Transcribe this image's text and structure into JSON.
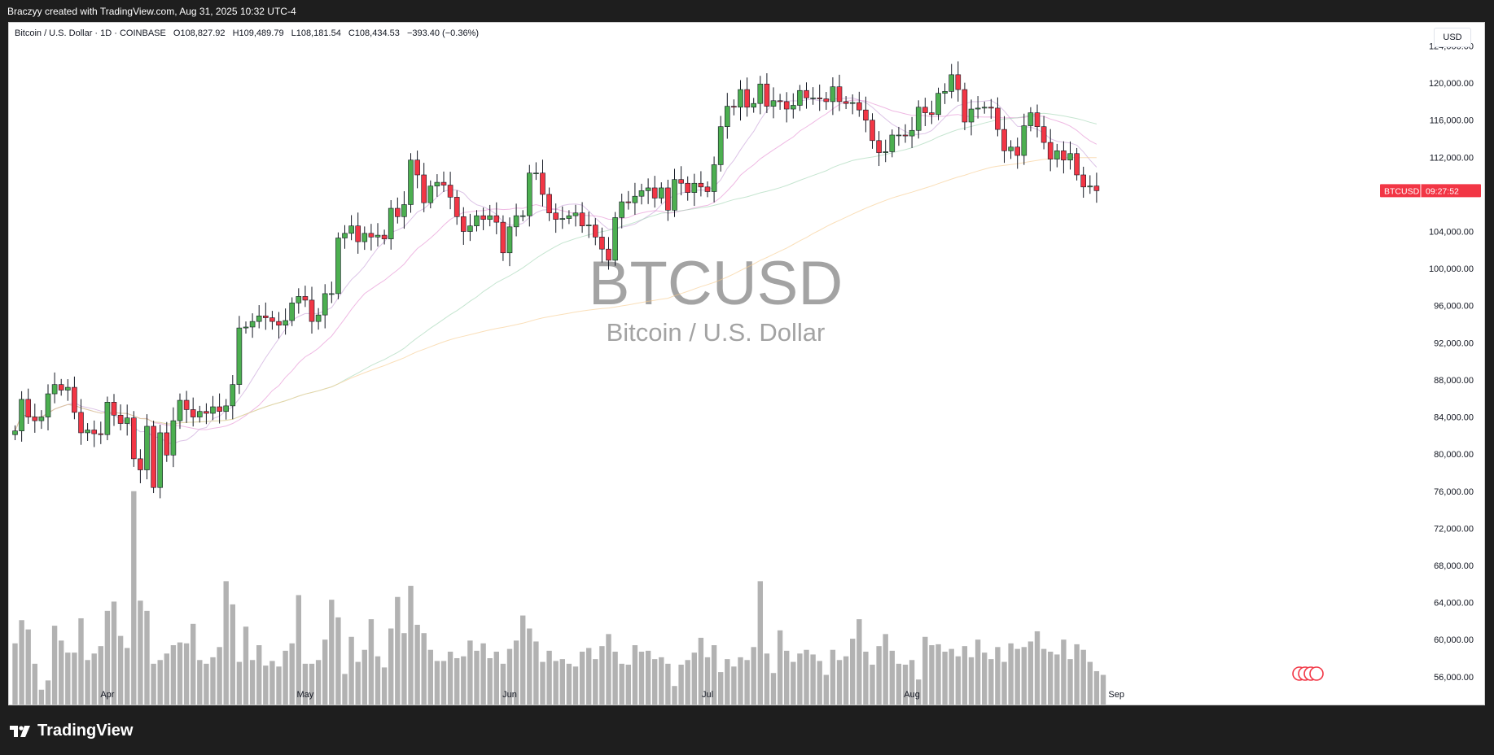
{
  "caption": "Braczyy created with TradingView.com, Aug 31, 2025 10:32 UTC-4",
  "header": {
    "symbol": "Bitcoin / U.S. Dollar · 1D · COINBASE",
    "open": "O108,827.92",
    "high": "H109,489.79",
    "low": "L108,181.54",
    "close": "C108,434.53",
    "change": "−393.40 (−0.36%)"
  },
  "currency": "USD",
  "watermark": {
    "ticker": "BTCUSD",
    "name": "Bitcoin / U.S. Dollar"
  },
  "price_tag": {
    "symbol": "BTCUSD",
    "countdown": "09:27:52",
    "color": "#f23645"
  },
  "footer_logo": "TradingView",
  "chart_data": {
    "type": "candlestick",
    "ylim": [
      53000,
      126500
    ],
    "y_ticks": [
      "124,000.00",
      "120,000.00",
      "116,000.00",
      "112,000.00",
      "104,000.00",
      "100,000.00",
      "96,000.00",
      "92,000.00",
      "88,000.00",
      "84,000.00",
      "80,000.00",
      "76,000.00",
      "72,000.00",
      "68,000.00",
      "64,000.00",
      "60,000.00",
      "56,000.00"
    ],
    "y_tick_values": [
      124000,
      120000,
      116000,
      112000,
      104000,
      100000,
      96000,
      92000,
      88000,
      84000,
      80000,
      76000,
      72000,
      68000,
      64000,
      60000,
      56000
    ],
    "x_ticks": [
      {
        "label": "Apr",
        "index": 14
      },
      {
        "label": "May",
        "index": 44
      },
      {
        "label": "Jun",
        "index": 75
      },
      {
        "label": "Jul",
        "index": 105
      },
      {
        "label": "Aug",
        "index": 136
      },
      {
        "label": "Sep",
        "index": 167
      }
    ],
    "colors": {
      "up": "#089981",
      "up_fill": "#4caf50",
      "down": "#f23645",
      "volume": "#b2b2b2"
    },
    "closes": [
      82500,
      85900,
      84000,
      83600,
      84000,
      86500,
      87500,
      86900,
      87200,
      84500,
      82300,
      82600,
      82200,
      82100,
      85600,
      84200,
      83300,
      83900,
      79500,
      78300,
      83000,
      76400,
      82300,
      79900,
      83600,
      85800,
      84800,
      84000,
      84600,
      84400,
      85100,
      84600,
      85200,
      87500,
      93600,
      93700,
      94300,
      94900,
      94700,
      94300,
      93900,
      94400,
      96300,
      97000,
      96600,
      94300,
      95000,
      97300,
      97300,
      103300,
      103800,
      104600,
      102900,
      103800,
      103400,
      103600,
      103200,
      106500,
      105600,
      106900,
      111700,
      110100,
      107100,
      108900,
      109300,
      109000,
      107700,
      105600,
      104000,
      104600,
      105700,
      105300,
      105700,
      105000,
      101700,
      104500,
      105700,
      105700,
      110300,
      110300,
      108000,
      106000,
      105300,
      105400,
      105700,
      106000,
      104600,
      104700,
      103400,
      102100,
      100900,
      105500,
      107200,
      107100,
      107800,
      108400,
      108700,
      107600,
      108700,
      106300,
      109600,
      109200,
      108200,
      109200,
      108800,
      108300,
      111200,
      115300,
      117500,
      117400,
      119300,
      117400,
      117800,
      119900,
      117500,
      118100,
      118000,
      117200,
      117600,
      119200,
      118400,
      118400,
      118300,
      118000,
      119600,
      118000,
      117800,
      117900,
      117100,
      116000,
      113800,
      112500,
      112600,
      114400,
      114400,
      114300,
      114900,
      117400,
      116800,
      116600,
      118900,
      119100,
      120900,
      119300,
      115800,
      117200,
      117300,
      117400,
      117300,
      115000,
      112700,
      113100,
      112200,
      115400,
      116800,
      115300,
      113600,
      111800,
      112700,
      111700,
      112400,
      110100,
      108800,
      108900,
      108400
    ],
    "opens": [
      null,
      82500,
      85900,
      84000,
      83600,
      84000,
      86500,
      87500,
      86900,
      87200,
      84500,
      82300,
      82600,
      82200,
      82100,
      85600,
      84200,
      83300,
      83900,
      79500,
      78300,
      83000,
      76400,
      82300,
      79900,
      83600,
      85800,
      84800,
      84000,
      84600,
      84400,
      85100,
      84600,
      85200,
      87500,
      93600,
      93700,
      94300,
      94900,
      94700,
      94300,
      93900,
      94400,
      96300,
      97000,
      96600,
      94300,
      95000,
      97300,
      97300,
      103300,
      103800,
      104600,
      102900,
      103800,
      103400,
      103600,
      103200,
      106500,
      105600,
      106900,
      111700,
      110100,
      107100,
      108900,
      109300,
      109000,
      107700,
      105600,
      104000,
      104600,
      105700,
      105300,
      105700,
      105000,
      101700,
      104500,
      105700,
      105700,
      110300,
      110300,
      108000,
      106000,
      105300,
      105400,
      105700,
      106000,
      104600,
      104700,
      103400,
      102100,
      100900,
      105500,
      107200,
      107100,
      107800,
      108400,
      108700,
      107600,
      108700,
      106300,
      109600,
      109200,
      108200,
      109200,
      108800,
      108300,
      111200,
      115300,
      117500,
      117400,
      119300,
      117400,
      117800,
      119900,
      117500,
      118100,
      118000,
      117200,
      117600,
      119200,
      118400,
      118400,
      118300,
      118000,
      119600,
      118000,
      117800,
      117900,
      117100,
      116000,
      113800,
      112500,
      112600,
      114400,
      114400,
      114300,
      114900,
      117400,
      116800,
      116600,
      118900,
      119100,
      120900,
      119300,
      115800,
      117200,
      117300,
      117400,
      117300,
      115000,
      112700,
      113100,
      112200,
      115400,
      116800,
      115300,
      113600,
      111800,
      112700,
      111700,
      112400,
      110100,
      108800,
      108900
    ],
    "volumes": [
      59600,
      62100,
      61100,
      57400,
      54600,
      55600,
      61500,
      59900,
      58600,
      58600,
      62300,
      57800,
      58500,
      59300,
      63100,
      64100,
      60400,
      59100,
      76000,
      64200,
      63100,
      57400,
      57800,
      58500,
      59400,
      59700,
      59600,
      61700,
      57800,
      57400,
      58100,
      59200,
      66300,
      63800,
      57600,
      61400,
      57800,
      59400,
      57200,
      57700,
      57100,
      58800,
      59600,
      64800,
      57400,
      57400,
      57800,
      60000,
      64300,
      62400,
      56300,
      60300,
      57600,
      58900,
      62200,
      58200,
      57000,
      61200,
      64600,
      60700,
      65800,
      61600,
      60700,
      58900,
      57700,
      57700,
      58700,
      58000,
      58200,
      59900,
      58800,
      59600,
      58000,
      58700,
      57400,
      59000,
      59900,
      62600,
      61200,
      59800,
      57600,
      58800,
      57700,
      57900,
      57400,
      57100,
      58700,
      59100,
      57900,
      59300,
      60600,
      58700,
      57400,
      57300,
      59400,
      58700,
      58800,
      57900,
      58100,
      57400,
      55000,
      57300,
      57800,
      58600,
      60200,
      58100,
      59400,
      56500,
      57900,
      57100,
      58100,
      57800,
      59200,
      66300,
      58500,
      56400,
      61000,
      58800,
      57600,
      58500,
      58900,
      58400,
      57700,
      56200,
      58900,
      57800,
      58200,
      60100,
      62200,
      58700,
      57300,
      59300,
      60600,
      58800,
      57400,
      57300,
      57800,
      55700,
      60300,
      59400,
      59500,
      58700,
      59000,
      58200,
      59300,
      58100,
      60000,
      58600,
      57900,
      59200,
      57600,
      59600,
      59000,
      59200,
      59800,
      60900,
      59000,
      58700,
      58400,
      60000,
      57900,
      59500,
      58900,
      57600,
      56600,
      56200
    ]
  }
}
